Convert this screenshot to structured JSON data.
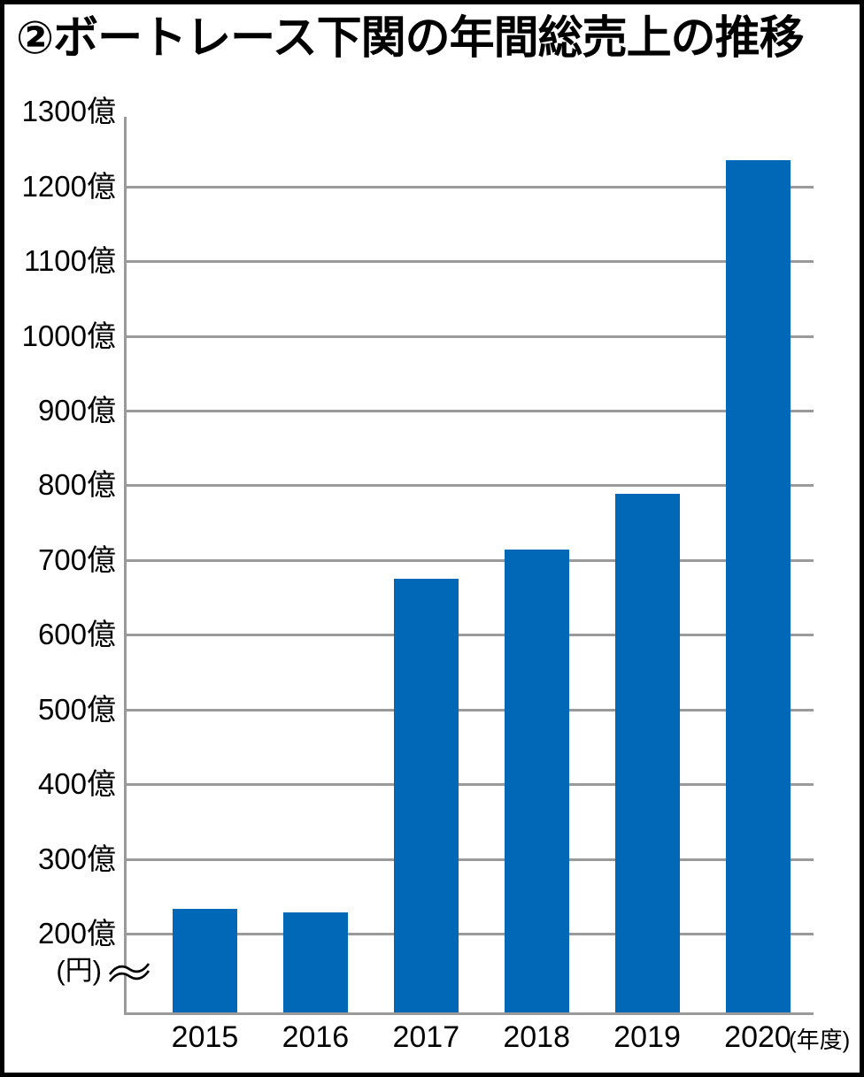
{
  "title": "②ボートレース下関の年間総売上の推移",
  "chart_data": {
    "type": "bar",
    "title": "②ボートレース下関の年間総売上の推移",
    "categories": [
      "2015",
      "2016",
      "2017",
      "2018",
      "2019",
      "2020"
    ],
    "values": [
      233,
      228,
      675,
      714,
      789,
      1235
    ],
    "value_unit": "億円",
    "x_axis_suffix": "(年度)",
    "y_axis_unit": "(円)",
    "y_ticks": [
      200,
      300,
      400,
      500,
      600,
      700,
      800,
      900,
      1000,
      1100,
      1200,
      1300
    ],
    "y_tick_labels": [
      "200億",
      "300億",
      "400億",
      "500億",
      "600億",
      "700億",
      "800億",
      "900億",
      "1000億",
      "1100億",
      "1200億",
      "1300億"
    ],
    "ylim": [
      200,
      1300
    ],
    "axis_break_below": 200,
    "grid": "horizontal",
    "legend": "none",
    "colors": {
      "bar": "#0068b7",
      "grid": "#9a9a9a",
      "text": "#000000",
      "background": "#ffffff",
      "frame": "#000000"
    }
  }
}
